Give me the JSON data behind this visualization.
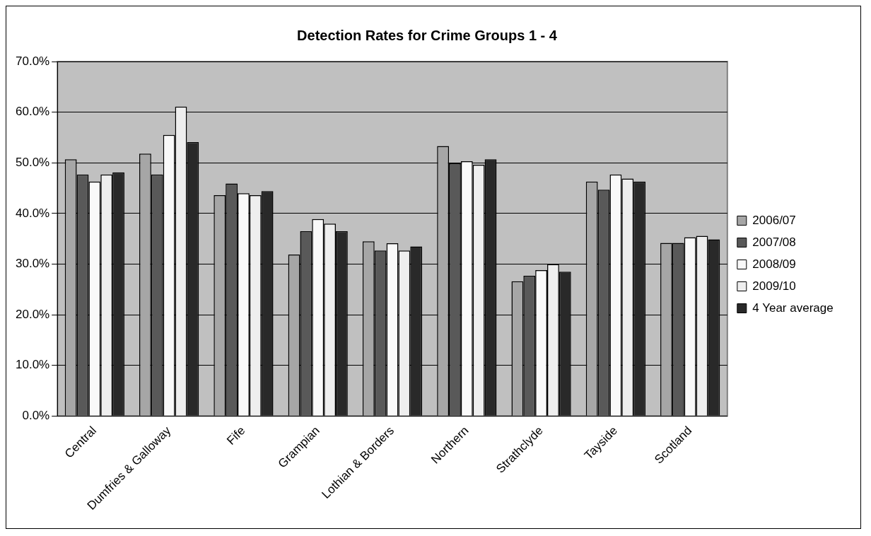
{
  "chart_data": {
    "type": "bar",
    "title": "Detection Rates for Crime Groups 1 - 4",
    "categories": [
      "Central",
      "Dumfries & Galloway",
      "Fife",
      "Grampian",
      "Lothian & Borders",
      "Northern",
      "Strathclyde",
      "Tayside",
      "Scotland"
    ],
    "series": [
      {
        "name": "2006/07",
        "color": "#a6a6a6",
        "values": [
          50.7,
          51.8,
          43.6,
          31.9,
          34.5,
          53.3,
          26.6,
          46.3,
          34.2
        ]
      },
      {
        "name": "2007/08",
        "color": "#595959",
        "values": [
          47.7,
          47.7,
          45.9,
          36.5,
          32.7,
          49.9,
          27.7,
          44.7,
          34.2
        ]
      },
      {
        "name": "2008/09",
        "color": "#f9f9f9",
        "values": [
          46.3,
          55.5,
          44.0,
          38.9,
          34.1,
          50.3,
          28.8,
          47.7,
          35.3
        ]
      },
      {
        "name": "2009/10",
        "color": "#eeeeee",
        "values": [
          47.7,
          61.1,
          43.6,
          38.0,
          32.7,
          49.6,
          30.0,
          46.9,
          35.6
        ]
      },
      {
        "name": "4 Year average",
        "color": "#292929",
        "values": [
          48.1,
          54.1,
          44.4,
          36.5,
          33.5,
          50.7,
          28.5,
          46.3,
          34.9
        ]
      }
    ],
    "ylim": [
      0,
      70
    ],
    "yticks": [
      {
        "value": 0,
        "label": "0.0%"
      },
      {
        "value": 10,
        "label": "10.0%"
      },
      {
        "value": 20,
        "label": "20.0%"
      },
      {
        "value": 30,
        "label": "30.0%"
      },
      {
        "value": 40,
        "label": "40.0%"
      },
      {
        "value": 50,
        "label": "50.0%"
      },
      {
        "value": 60,
        "label": "60.0%"
      },
      {
        "value": 70,
        "label": "70.0%"
      }
    ],
    "grid": "y",
    "legend": "right"
  }
}
